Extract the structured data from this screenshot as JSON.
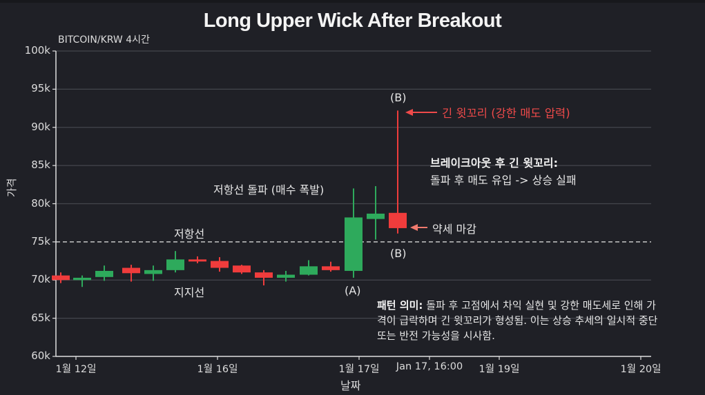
{
  "header": {
    "title": "Long Upper Wick After Breakout",
    "subtitle": "BITCOIN/KRW 4시간"
  },
  "axes": {
    "ylabel": "가격",
    "xlabel": "날짜",
    "yticks": [
      "100k",
      "95k",
      "90k",
      "85k",
      "80k",
      "75k",
      "70k",
      "65k",
      "60k"
    ],
    "xticks": [
      "1월 12일",
      "1월 16일",
      "1월 17일",
      "Jan 17, 16:00",
      "1월 19일",
      "1월 20일"
    ]
  },
  "annotations": {
    "resistance": "저항선",
    "support": "지지선",
    "breakout": "저항선 돌파 (매수 폭발)",
    "label_a": "(A)",
    "label_b_top": "(B)",
    "label_b_bottom": "(B)",
    "long_wick": "긴 윗꼬리 (강한 매도 압력)",
    "weak_close": "약세 마감",
    "summary_title": "브레이크아웃 후 긴 윗꼬리:",
    "summary_body": "돌파 후 매도 유입 -> 상승 실패",
    "note_title": "패턴 의미:",
    "note_body": " 돌파 후 고점에서 차익 실현 및 강한 매도세로 인해 가격이 급락하며 긴 윗꼬리가 형성됨. 이는 상승 추세의 일시적 중단 또는 반전 가능성을 시사함."
  },
  "colors": {
    "background": "#1f2026",
    "bullish": "#2eaa5c",
    "bearish": "#f03c3c",
    "grid": "#44464d",
    "axis": "#e0e0e0",
    "resistance_line": "#c8c8c8",
    "annotation_red": "#ef4a4a",
    "annotation_arrow_light": "#f07a6e"
  },
  "chart_data": {
    "type": "candlestick",
    "title": "Long Upper Wick After Breakout",
    "subtitle": "BITCOIN/KRW 4시간",
    "xlabel": "날짜",
    "ylabel": "가격",
    "ylim": [
      60000,
      100000
    ],
    "yticks": [
      60000,
      65000,
      70000,
      75000,
      80000,
      85000,
      90000,
      95000,
      100000
    ],
    "xticks": [
      "1월 12일",
      "1월 16일",
      "1월 17일",
      "Jan 17, 16:00",
      "1월 19일",
      "1월 20일"
    ],
    "grid": "horizontal",
    "resistance_level": 75000,
    "candles": [
      {
        "open": 70600,
        "high": 71000,
        "low": 69600,
        "close": 70000
      },
      {
        "open": 70000,
        "high": 70600,
        "low": 69100,
        "close": 70300
      },
      {
        "open": 70400,
        "high": 71900,
        "low": 69900,
        "close": 71200
      },
      {
        "open": 71600,
        "high": 72000,
        "low": 69800,
        "close": 70900
      },
      {
        "open": 70800,
        "high": 71900,
        "low": 69900,
        "close": 71300
      },
      {
        "open": 71300,
        "high": 73800,
        "low": 71000,
        "close": 72700
      },
      {
        "open": 72700,
        "high": 73100,
        "low": 72200,
        "close": 72500
      },
      {
        "open": 72500,
        "high": 73000,
        "low": 71100,
        "close": 71600
      },
      {
        "open": 71900,
        "high": 72000,
        "low": 70800,
        "close": 71000
      },
      {
        "open": 71000,
        "high": 71300,
        "low": 69300,
        "close": 70300
      },
      {
        "open": 70300,
        "high": 71200,
        "low": 69800,
        "close": 70700
      },
      {
        "open": 70700,
        "high": 72600,
        "low": 70600,
        "close": 71800
      },
      {
        "open": 71800,
        "high": 72400,
        "low": 71100,
        "close": 71300
      },
      {
        "open": 71200,
        "high": 82000,
        "low": 70300,
        "close": 78200,
        "label": "(A)"
      },
      {
        "open": 78000,
        "high": 82300,
        "low": 75300,
        "close": 78700
      },
      {
        "open": 78800,
        "high": 92200,
        "low": 76100,
        "close": 76800,
        "label": "(B)"
      }
    ],
    "annotations": [
      "저항선",
      "지지선",
      "저항선 돌파 (매수 폭발)",
      "긴 윗꼬리 (강한 매도 압력)",
      "약세 마감",
      "브레이크아웃 후 긴 윗꼬리: 돌파 후 매도 유입 -> 상승 실패",
      "패턴 의미: 돌파 후 고점에서 차익 실현 및 강한 매도세로 인해 가격이 급락하며 긴 윗꼬리가 형성됨. 이는 상승 추세의 일시적 중단 또는 반전 가능성을 시사함."
    ]
  }
}
